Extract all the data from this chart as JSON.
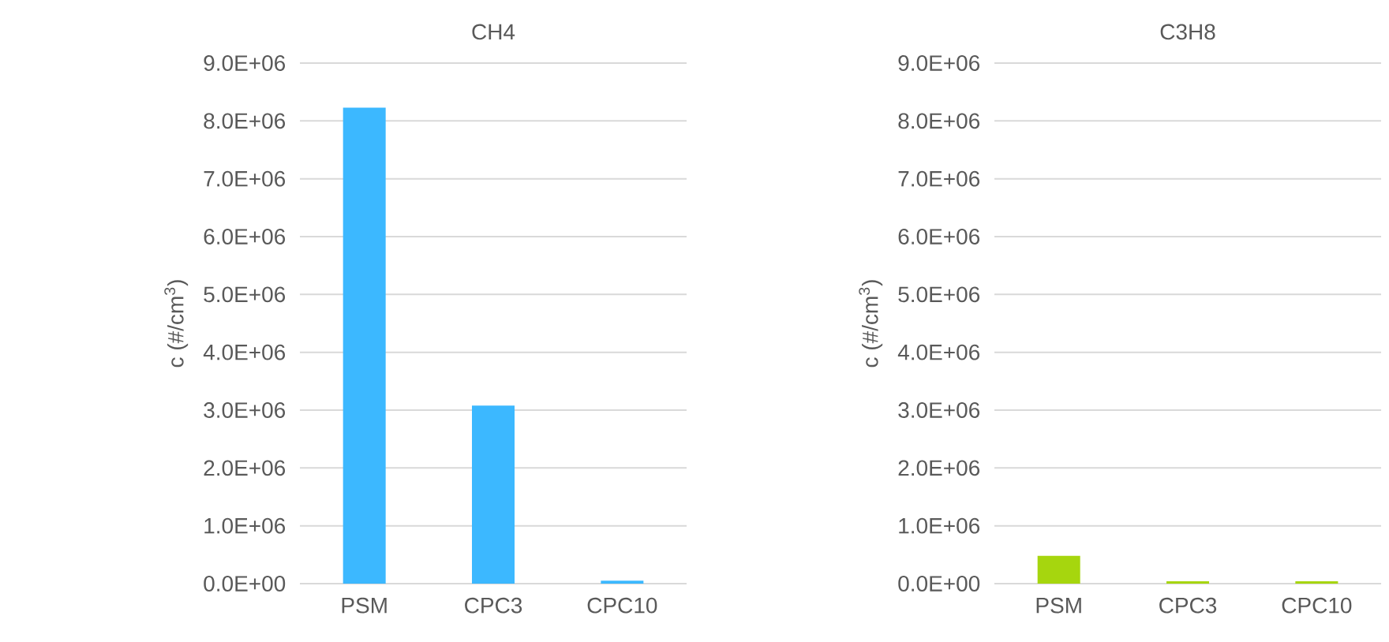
{
  "chart_data": [
    {
      "type": "bar",
      "title": "CH4",
      "ylabel": "c (#/cm$^{3}$)",
      "categories": [
        "PSM",
        "CPC3",
        "CPC10"
      ],
      "values": [
        8230000,
        3080000,
        50000
      ],
      "color": "#3cb8ff",
      "ylim": [
        0,
        9000000
      ],
      "yticks": [
        {
          "value": 0,
          "label": "0.0E+00"
        },
        {
          "value": 1000000,
          "label": "1.0E+06"
        },
        {
          "value": 2000000,
          "label": "2.0E+06"
        },
        {
          "value": 3000000,
          "label": "3.0E+06"
        },
        {
          "value": 4000000,
          "label": "4.0E+06"
        },
        {
          "value": 5000000,
          "label": "5.0E+06"
        },
        {
          "value": 6000000,
          "label": "6.0E+06"
        },
        {
          "value": 7000000,
          "label": "7.0E+06"
        },
        {
          "value": 8000000,
          "label": "8.0E+06"
        },
        {
          "value": 9000000,
          "label": "9.0E+06"
        }
      ],
      "grid": "y"
    },
    {
      "type": "bar",
      "title": "C3H8",
      "ylabel": "c (#/cm$^{3}$)",
      "categories": [
        "PSM",
        "CPC3",
        "CPC10"
      ],
      "values": [
        480000,
        40000,
        40000
      ],
      "color": "#a6d60e",
      "ylim": [
        0,
        9000000
      ],
      "yticks": [
        {
          "value": 0,
          "label": "0.0E+00"
        },
        {
          "value": 1000000,
          "label": "1.0E+06"
        },
        {
          "value": 2000000,
          "label": "2.0E+06"
        },
        {
          "value": 3000000,
          "label": "3.0E+06"
        },
        {
          "value": 4000000,
          "label": "4.0E+06"
        },
        {
          "value": 5000000,
          "label": "5.0E+06"
        },
        {
          "value": 6000000,
          "label": "6.0E+06"
        },
        {
          "value": 7000000,
          "label": "7.0E+06"
        },
        {
          "value": 8000000,
          "label": "8.0E+06"
        },
        {
          "value": 9000000,
          "label": "9.0E+06"
        }
      ],
      "grid": "y"
    }
  ]
}
